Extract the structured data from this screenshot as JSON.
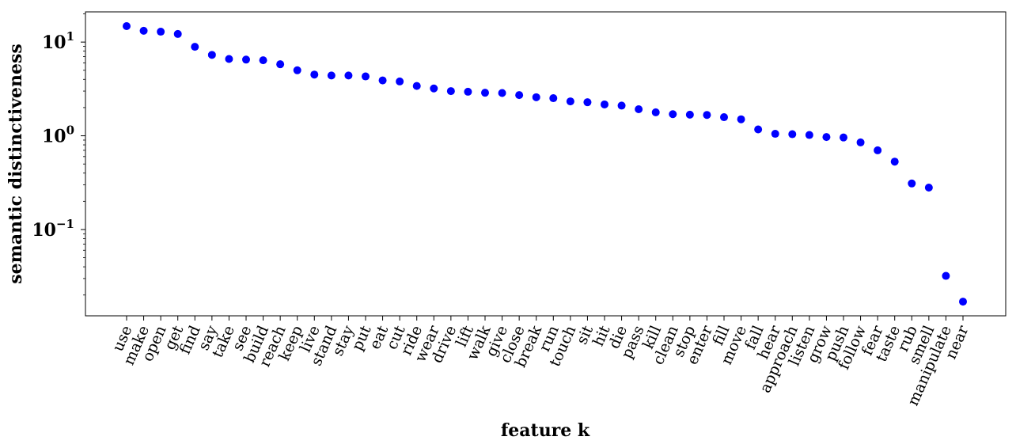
{
  "chart_data": {
    "type": "scatter",
    "xlabel": "feature k",
    "ylabel": "semantic distinctiveness",
    "yscale": "log",
    "ylim": [
      0.012,
      21
    ],
    "yticks": [
      {
        "value": 10,
        "base": "10",
        "exp": "1"
      },
      {
        "value": 1,
        "base": "10",
        "exp": "0"
      },
      {
        "value": 0.1,
        "base": "10",
        "exp": "−1"
      }
    ],
    "marker_color": "#0000ff",
    "grid": false,
    "categories": [
      "use",
      "make",
      "open",
      "get",
      "find",
      "say",
      "take",
      "see",
      "build",
      "reach",
      "keep",
      "live",
      "stand",
      "stay",
      "put",
      "eat",
      "cut",
      "ride",
      "wear",
      "drive",
      "lift",
      "walk",
      "give",
      "close",
      "break",
      "run",
      "touch",
      "sit",
      "hit",
      "die",
      "pass",
      "kill",
      "clean",
      "stop",
      "enter",
      "fill",
      "move",
      "fall",
      "hear",
      "approach",
      "listen",
      "grow",
      "push",
      "follow",
      "fear",
      "taste",
      "rub",
      "smell",
      "manipulate",
      "near"
    ],
    "values": [
      14.8,
      13.2,
      12.9,
      12.2,
      8.9,
      7.3,
      6.6,
      6.5,
      6.4,
      5.8,
      5.0,
      4.5,
      4.4,
      4.4,
      4.3,
      3.9,
      3.8,
      3.4,
      3.2,
      3.0,
      2.95,
      2.88,
      2.86,
      2.72,
      2.58,
      2.52,
      2.33,
      2.28,
      2.16,
      2.1,
      1.92,
      1.78,
      1.7,
      1.68,
      1.67,
      1.58,
      1.5,
      1.17,
      1.05,
      1.04,
      1.02,
      0.97,
      0.96,
      0.85,
      0.7,
      0.53,
      0.31,
      0.28,
      0.032,
      0.017
    ]
  }
}
